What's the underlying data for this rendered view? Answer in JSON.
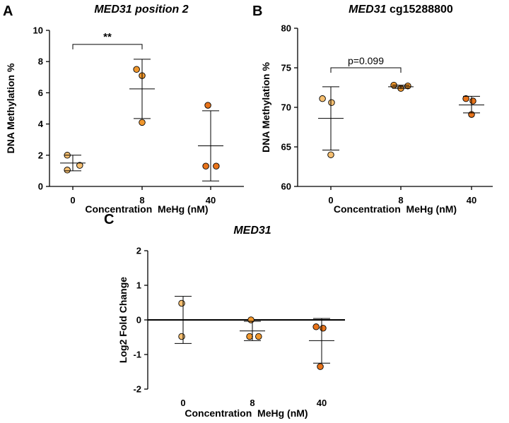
{
  "colors": {
    "conc_0": "#f6bf70",
    "conc_8": "#f0972d",
    "conc_40": "#e8731a",
    "outline": "#000000"
  },
  "chart_data": [
    {
      "panel": "A",
      "type": "scatter",
      "title_gene": "MED31",
      "title_rest": " position 2",
      "title_rest_italic": true,
      "xlabel": "Concentration  MeHg (nM)",
      "ylabel": "DNA Methylation %",
      "categories": [
        "0",
        "8",
        "40"
      ],
      "ylim": [
        0,
        10
      ],
      "yticks": [
        0,
        2,
        4,
        6,
        8,
        10
      ],
      "points": [
        {
          "cat": 0,
          "y": 2.0,
          "jitter": -0.08
        },
        {
          "cat": 0,
          "y": 1.05,
          "jitter": -0.08
        },
        {
          "cat": 0,
          "y": 1.35,
          "jitter": 0.1
        },
        {
          "cat": 1,
          "y": 7.5,
          "jitter": -0.08
        },
        {
          "cat": 1,
          "y": 7.1,
          "jitter": 0.0
        },
        {
          "cat": 1,
          "y": 4.1,
          "jitter": 0.0
        },
        {
          "cat": 2,
          "y": 5.2,
          "jitter": -0.04
        },
        {
          "cat": 2,
          "y": 1.3,
          "jitter": -0.07
        },
        {
          "cat": 2,
          "y": 1.3,
          "jitter": 0.08
        }
      ],
      "summary": [
        {
          "cat": 0,
          "mean": 1.5,
          "low": 1.0,
          "high": 2.0
        },
        {
          "cat": 1,
          "mean": 6.25,
          "low": 4.35,
          "high": 8.15
        },
        {
          "cat": 2,
          "mean": 2.6,
          "low": 0.35,
          "high": 4.85
        }
      ],
      "annotation": {
        "text": "**",
        "from": 0,
        "to": 1,
        "y": 9.1
      }
    },
    {
      "panel": "B",
      "type": "scatter",
      "title_gene": "MED31",
      "title_rest": " cg15288800",
      "title_rest_italic": false,
      "xlabel": "Concentration  MeHg (nM)",
      "ylabel": "DNA Methylation %",
      "categories": [
        "0",
        "8",
        "40"
      ],
      "ylim": [
        60,
        80
      ],
      "yticks": [
        60,
        65,
        70,
        75,
        80
      ],
      "points": [
        {
          "cat": 0,
          "y": 71.1,
          "jitter": -0.12
        },
        {
          "cat": 0,
          "y": 70.6,
          "jitter": 0.01
        },
        {
          "cat": 0,
          "y": 64.0,
          "jitter": 0.0
        },
        {
          "cat": 1,
          "y": 72.8,
          "jitter": -0.1
        },
        {
          "cat": 1,
          "y": 72.4,
          "jitter": 0.0
        },
        {
          "cat": 1,
          "y": 72.7,
          "jitter": 0.1
        },
        {
          "cat": 2,
          "y": 71.1,
          "jitter": -0.08
        },
        {
          "cat": 2,
          "y": 70.8,
          "jitter": 0.02
        },
        {
          "cat": 2,
          "y": 69.1,
          "jitter": 0.0
        }
      ],
      "summary": [
        {
          "cat": 0,
          "mean": 68.6,
          "low": 64.6,
          "high": 72.6
        },
        {
          "cat": 1,
          "mean": 72.6,
          "low": 72.4,
          "high": 72.8
        },
        {
          "cat": 2,
          "mean": 70.3,
          "low": 69.3,
          "high": 71.4
        }
      ],
      "annotation": {
        "text": "p=0.099",
        "from": 0,
        "to": 1,
        "y": 75.0
      }
    },
    {
      "panel": "C",
      "type": "scatter",
      "title_gene": "MED31",
      "title_rest": "",
      "title_rest_italic": false,
      "xlabel": "Concentration  MeHg (nM)",
      "ylabel": "Log2 Fold Change",
      "categories": [
        "0",
        "8",
        "40"
      ],
      "ylim": [
        -2,
        2
      ],
      "yticks": [
        -2,
        -1,
        0,
        1,
        2
      ],
      "zero_line": true,
      "points": [
        {
          "cat": 0,
          "y": 0.48,
          "jitter": -0.02
        },
        {
          "cat": 0,
          "y": -0.48,
          "jitter": -0.02
        },
        {
          "cat": 1,
          "y": 0.0,
          "jitter": -0.02
        },
        {
          "cat": 1,
          "y": -0.48,
          "jitter": -0.04
        },
        {
          "cat": 1,
          "y": -0.48,
          "jitter": 0.09
        },
        {
          "cat": 2,
          "y": -0.2,
          "jitter": -0.08
        },
        {
          "cat": 2,
          "y": -0.24,
          "jitter": 0.02
        },
        {
          "cat": 2,
          "y": -1.35,
          "jitter": -0.02
        }
      ],
      "summary": [
        {
          "cat": 0,
          "mean": 0.0,
          "low": -0.68,
          "high": 0.68
        },
        {
          "cat": 1,
          "mean": -0.32,
          "low": -0.6,
          "high": -0.04
        },
        {
          "cat": 2,
          "mean": -0.6,
          "low": -1.25,
          "high": 0.04
        }
      ]
    }
  ]
}
